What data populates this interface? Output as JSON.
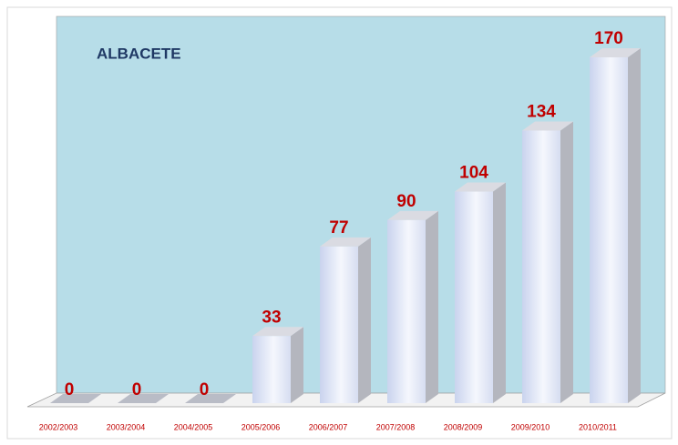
{
  "chart_data": {
    "type": "bar3d",
    "title": "ALBACETE",
    "categories": [
      "2002/2003",
      "2003/2004",
      "2004/2005",
      "2005/2006",
      "2006/2007",
      "2007/2008",
      "2008/2009",
      "2009/2010",
      "2010/2011"
    ],
    "values": [
      0,
      0,
      0,
      33,
      77,
      90,
      104,
      134,
      170
    ],
    "color": "#dfe6f6"
  }
}
